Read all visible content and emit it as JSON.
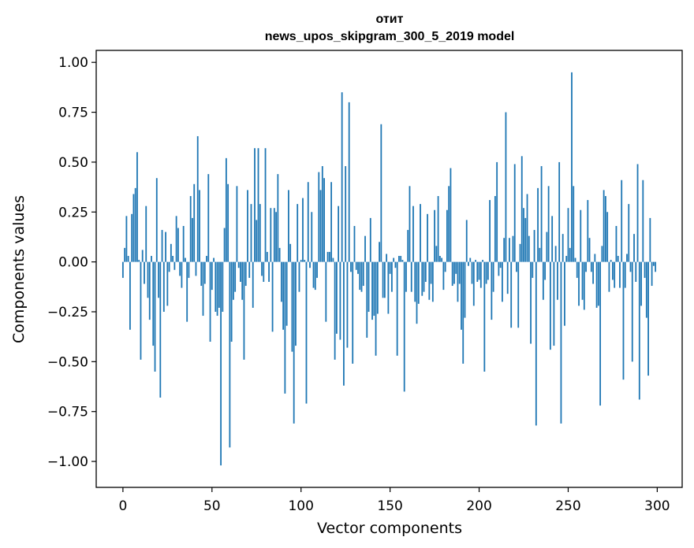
{
  "chart_data": {
    "type": "bar",
    "title_line1": "отит",
    "title_line2": "news_upos_skipgram_300_5_2019 model",
    "xlabel": "Vector components",
    "ylabel": "Components values",
    "xlim": [
      -15,
      314
    ],
    "ylim": [
      -1.13,
      1.06
    ],
    "xticks": [
      0,
      50,
      100,
      150,
      200,
      250,
      300
    ],
    "yticks": [
      1.0,
      0.75,
      0.5,
      0.25,
      0.0,
      -0.25,
      -0.5,
      -0.75,
      -1.0
    ],
    "ytick_labels": [
      "1.00",
      "0.75",
      "0.50",
      "0.25",
      "0.00",
      "−0.25",
      "−0.50",
      "−0.75",
      "−1.00"
    ],
    "xtick_labels": [
      "0",
      "50",
      "100",
      "150",
      "200",
      "250",
      "300"
    ],
    "bar_color": "#1f77b4",
    "values": [
      -0.08,
      0.07,
      0.23,
      0.03,
      -0.34,
      0.24,
      0.34,
      0.37,
      0.55,
      0.01,
      -0.49,
      0.06,
      -0.11,
      0.28,
      -0.18,
      -0.29,
      0.03,
      -0.42,
      -0.55,
      0.42,
      -0.18,
      -0.68,
      0.16,
      -0.25,
      0.15,
      -0.22,
      -0.05,
      0.09,
      0.03,
      -0.04,
      0.23,
      0.17,
      -0.07,
      -0.13,
      0.18,
      0.02,
      -0.3,
      -0.08,
      0.33,
      0.22,
      0.39,
      -0.07,
      0.63,
      0.36,
      -0.12,
      -0.27,
      -0.11,
      0.03,
      0.44,
      -0.4,
      -0.14,
      0.02,
      -0.25,
      -0.27,
      -0.23,
      -1.02,
      -0.25,
      0.17,
      0.52,
      0.39,
      -0.93,
      -0.4,
      -0.19,
      -0.15,
      0.38,
      -0.03,
      -0.1,
      -0.19,
      -0.49,
      -0.12,
      0.36,
      -0.08,
      0.29,
      -0.23,
      0.57,
      0.21,
      0.57,
      0.29,
      -0.07,
      -0.1,
      0.57,
      0.05,
      -0.1,
      0.27,
      -0.35,
      0.27,
      0.25,
      0.44,
      0.07,
      -0.2,
      -0.34,
      -0.66,
      -0.32,
      0.36,
      0.09,
      -0.45,
      -0.81,
      -0.42,
      0.29,
      -0.15,
      0.01,
      0.32,
      0.01,
      -0.71,
      0.4,
      -0.03,
      0.25,
      -0.13,
      -0.14,
      -0.08,
      0.45,
      0.36,
      0.48,
      0.42,
      -0.3,
      0.05,
      0.05,
      0.4,
      0.02,
      -0.49,
      -0.36,
      0.28,
      -0.39,
      0.85,
      -0.62,
      0.48,
      -0.43,
      0.8,
      -0.05,
      -0.51,
      0.18,
      -0.04,
      -0.06,
      -0.14,
      -0.15,
      -0.12,
      0.13,
      -0.38,
      -0.25,
      0.22,
      -0.29,
      -0.27,
      -0.47,
      -0.26,
      0.1,
      0.69,
      -0.18,
      -0.18,
      0.04,
      -0.26,
      -0.06,
      -0.15,
      0.02,
      -0.03,
      -0.47,
      0.03,
      0.03,
      0.01,
      -0.65,
      -0.15,
      0.16,
      0.38,
      -0.15,
      0.28,
      -0.2,
      -0.31,
      -0.21,
      0.29,
      -0.17,
      -0.15,
      -0.1,
      0.24,
      -0.19,
      -0.11,
      -0.2,
      0.26,
      0.08,
      0.33,
      0.03,
      0.02,
      -0.14,
      -0.05,
      0.26,
      0.38,
      0.47,
      -0.12,
      -0.11,
      -0.06,
      -0.2,
      -0.11,
      -0.34,
      -0.51,
      -0.28,
      0.21,
      -0.02,
      0.02,
      -0.11,
      -0.22,
      0.01,
      -0.1,
      -0.09,
      -0.13,
      0.01,
      -0.55,
      -0.11,
      -0.09,
      0.31,
      -0.29,
      -0.15,
      0.33,
      0.5,
      -0.07,
      -0.03,
      -0.2,
      0.12,
      0.75,
      -0.16,
      0.12,
      -0.33,
      0.13,
      0.49,
      -0.05,
      -0.33,
      0.09,
      0.53,
      0.27,
      0.22,
      0.34,
      0.13,
      -0.41,
      -0.08,
      0.16,
      -0.82,
      0.37,
      0.07,
      0.48,
      -0.19,
      -0.09,
      0.15,
      0.38,
      -0.44,
      0.23,
      -0.42,
      0.08,
      -0.19,
      0.5,
      -0.81,
      0.14,
      -0.32,
      0.03,
      0.27,
      0.07,
      0.95,
      0.38,
      0.02,
      -0.08,
      -0.22,
      0.26,
      -0.19,
      -0.24,
      -0.05,
      0.31,
      0.12,
      -0.05,
      -0.11,
      0.04,
      -0.23,
      -0.22,
      -0.72,
      0.08,
      0.36,
      0.33,
      0.25,
      -0.15,
      0.01,
      -0.09,
      -0.13,
      0.18,
      0.03,
      -0.13,
      0.41,
      -0.59,
      -0.13,
      0.04,
      0.29,
      -0.05,
      -0.5,
      0.14,
      -0.1,
      0.49,
      -0.69,
      -0.22,
      0.41,
      -0.08,
      -0.28,
      -0.57,
      0.22,
      -0.12,
      -0.02,
      -0.05
    ]
  }
}
